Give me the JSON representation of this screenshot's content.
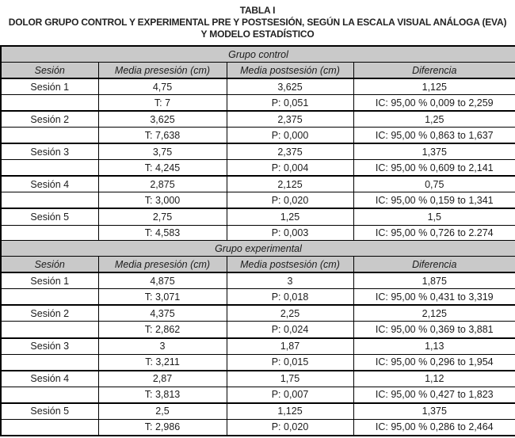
{
  "title": {
    "line1": "TABLA I",
    "line2": "DOLOR GRUPO CONTROL Y EXPERIMENTAL PRE Y POSTSESIÓN, SEGÚN LA ESCALA VISUAL ANÁLOGA (EVA)",
    "line3": "Y MODELO ESTADÍSTICO"
  },
  "colors": {
    "header_bg": "#c9c9c9",
    "border": "#000000",
    "text": "#1c1c1c"
  },
  "table": {
    "columns": [
      "Sesión",
      "Media presesión (cm)",
      "Media postsesión (cm)",
      "Diferencia"
    ],
    "groups": [
      {
        "name": "Grupo control",
        "rows": [
          {
            "session": "Sesión 1",
            "pre": "4,75",
            "post": "3,625",
            "diff": "1,125"
          },
          {
            "session": "",
            "pre": "T: 7",
            "post": "P: 0,051",
            "diff": "IC: 95,00 % 0,009 to 2,259"
          },
          {
            "session": "Sesión 2",
            "pre": "3,625",
            "post": "2,375",
            "diff": "1,25"
          },
          {
            "session": "",
            "pre": "T: 7,638",
            "post": "P: 0,000",
            "diff": "IC: 95,00 % 0,863 to 1,637"
          },
          {
            "session": "Sesión 3",
            "pre": "3,75",
            "post": "2,375",
            "diff": "1,375"
          },
          {
            "session": "",
            "pre": "T: 4,245",
            "post": "P: 0,004",
            "diff": "IC: 95,00 % 0,609 to 2,141"
          },
          {
            "session": "Sesión 4",
            "pre": "2,875",
            "post": "2,125",
            "diff": "0,75"
          },
          {
            "session": "",
            "pre": "T: 3,000",
            "post": "P: 0,020",
            "diff": "IC: 95,00 % 0,159 to 1,341"
          },
          {
            "session": "Sesión 5",
            "pre": "2,75",
            "post": "1,25",
            "diff": "1,5"
          },
          {
            "session": "",
            "pre": "T: 4,583",
            "post": "P: 0,003",
            "diff": "IC: 95,00 % 0,726 to 2.274"
          }
        ]
      },
      {
        "name": "Grupo experimental",
        "rows": [
          {
            "session": "Sesión 1",
            "pre": "4,875",
            "post": "3",
            "diff": "1,875"
          },
          {
            "session": "",
            "pre": "T: 3,071",
            "post": "P: 0,018",
            "diff": "IC: 95,00 % 0,431 to 3,319"
          },
          {
            "session": "Sesión 2",
            "pre": "4,375",
            "post": "2,25",
            "diff": "2,125"
          },
          {
            "session": "",
            "pre": "T: 2,862",
            "post": "P: 0,024",
            "diff": "IC: 95,00 % 0,369 to 3,881"
          },
          {
            "session": "Sesión 3",
            "pre": "3",
            "post": "1,87",
            "diff": "1,13"
          },
          {
            "session": "",
            "pre": "T: 3,211",
            "post": "P: 0,015",
            "diff": "IC: 95,00 % 0,296 to 1,954"
          },
          {
            "session": "Sesión 4",
            "pre": "2,87",
            "post": "1,75",
            "diff": "1,12"
          },
          {
            "session": "",
            "pre": "T: 3,813",
            "post": "P: 0,007",
            "diff": "IC: 95,00 % 0,427 to 1,823"
          },
          {
            "session": "Sesión 5",
            "pre": "2,5",
            "post": "1,125",
            "diff": "1,375"
          },
          {
            "session": "",
            "pre": "T: 2,986",
            "post": "P: 0,020",
            "diff": "IC: 95,00 % 0,286 to 2,464"
          }
        ]
      }
    ]
  }
}
